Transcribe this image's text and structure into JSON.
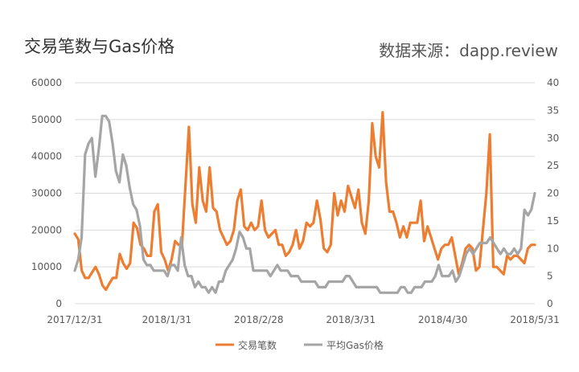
{
  "title": "交易笔数与Gas价格",
  "source": "数据来源：dapp.review",
  "colors": {
    "series1": "#ED7D31",
    "series2": "#A5A5A5",
    "grid": "#D9D9D9",
    "text": "#595959"
  },
  "chart_data": {
    "type": "line",
    "x_start": "2017/12/31",
    "x_end": "2018/5/31",
    "xticks": [
      "2017/12/31",
      "2018/1/31",
      "2018/2/28",
      "2018/3/31",
      "2018/4/30",
      "2018/5/31"
    ],
    "y_left": {
      "ylim": [
        0,
        60000
      ],
      "ticks": [
        0,
        10000,
        20000,
        30000,
        40000,
        50000,
        60000
      ]
    },
    "y_right": {
      "ylim": [
        0,
        40
      ],
      "ticks": [
        0,
        5,
        10,
        15,
        20,
        25,
        30,
        35,
        40
      ]
    },
    "grid": true,
    "legend_position": "bottom",
    "series": [
      {
        "name": "交易笔数",
        "axis": "left",
        "color": "#ED7D31",
        "values": [
          19000,
          17500,
          9000,
          7000,
          7000,
          8500,
          10000,
          8000,
          5000,
          3800,
          5500,
          7000,
          7000,
          13500,
          11000,
          9500,
          11000,
          22000,
          20500,
          16000,
          15000,
          13000,
          13000,
          25000,
          27000,
          14000,
          12000,
          9000,
          12000,
          17000,
          16000,
          16000,
          32000,
          48000,
          27000,
          22000,
          37000,
          28000,
          25000,
          37000,
          26000,
          25000,
          20000,
          18000,
          16000,
          17000,
          20000,
          28000,
          31000,
          21000,
          20000,
          22000,
          20000,
          21000,
          28000,
          20000,
          18000,
          19000,
          20000,
          16000,
          16000,
          13000,
          14000,
          16000,
          20000,
          15000,
          17000,
          22000,
          21000,
          22000,
          28000,
          23000,
          15000,
          14000,
          16000,
          30000,
          24000,
          28000,
          25000,
          32000,
          29000,
          26000,
          31000,
          22000,
          19000,
          28000,
          49000,
          40000,
          37000,
          52000,
          33000,
          25000,
          25000,
          22000,
          18000,
          21000,
          18000,
          22000,
          22000,
          22000,
          28000,
          17000,
          21000,
          18000,
          15000,
          12000,
          15000,
          16000,
          16000,
          18000,
          13000,
          8000,
          11000,
          15000,
          16000,
          15000,
          9000,
          10000,
          20000,
          30000,
          46000,
          10000,
          10000,
          9000,
          8000,
          13000,
          12000,
          13000,
          13000,
          12000,
          11000,
          15000,
          16000,
          16000
        ]
      },
      {
        "name": "平均Gas价格",
        "axis": "right",
        "color": "#A5A5A5",
        "values": [
          6,
          8,
          12,
          27,
          29,
          30,
          23,
          28,
          34,
          34,
          33,
          29,
          24,
          22,
          27,
          25,
          21,
          18,
          17,
          14,
          8,
          7,
          7,
          6,
          6,
          6,
          6,
          5,
          7,
          7,
          6,
          12,
          7,
          5,
          5,
          3,
          4,
          3,
          3,
          2,
          3,
          2,
          4,
          4,
          6,
          7,
          8,
          10,
          13,
          12,
          10,
          10,
          6,
          6,
          6,
          6,
          6,
          5,
          6,
          7,
          6,
          6,
          6,
          5,
          5,
          5,
          4,
          4,
          4,
          4,
          4,
          3,
          3,
          3,
          4,
          4,
          4,
          4,
          4,
          5,
          5,
          4,
          3,
          3,
          3,
          3,
          3,
          3,
          3,
          2,
          2,
          2,
          2,
          2,
          2,
          3,
          3,
          2,
          2,
          3,
          3,
          3,
          4,
          4,
          4,
          5,
          7,
          5,
          5,
          5,
          6,
          4,
          5,
          7,
          9,
          10,
          9,
          10,
          11,
          11,
          11,
          12,
          11,
          10,
          9,
          10,
          9,
          9,
          10,
          9,
          10,
          17,
          16,
          17,
          20
        ]
      }
    ]
  },
  "legend": {
    "s1": "交易笔数",
    "s2": "平均Gas价格"
  }
}
